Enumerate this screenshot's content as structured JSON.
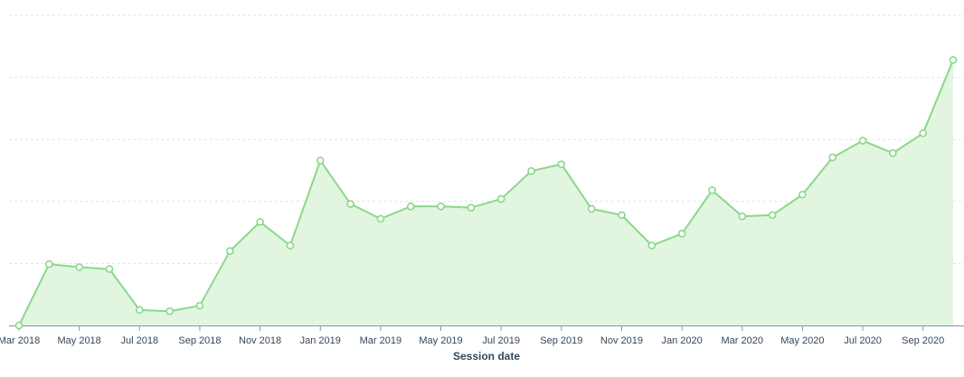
{
  "chart_data": {
    "type": "area",
    "title": "",
    "xlabel": "Session date",
    "ylabel": "",
    "x": [
      "Mar 2018",
      "Apr 2018",
      "May 2018",
      "Jun 2018",
      "Jul 2018",
      "Aug 2018",
      "Sep 2018",
      "Oct 2018",
      "Nov 2018",
      "Dec 2018",
      "Jan 2019",
      "Feb 2019",
      "Mar 2019",
      "Apr 2019",
      "May 2019",
      "Jun 2019",
      "Jul 2019",
      "Aug 2019",
      "Sep 2019",
      "Oct 2019",
      "Nov 2019",
      "Dec 2019",
      "Jan 2020",
      "Feb 2020",
      "Mar 2020",
      "Apr 2020",
      "May 2020",
      "Jun 2020",
      "Jul 2020",
      "Aug 2020",
      "Sep 2020",
      "Oct 2020"
    ],
    "x_tick_labels": [
      "Mar 2018",
      "May 2018",
      "Jul 2018",
      "Sep 2018",
      "Nov 2018",
      "Jan 2019",
      "Mar 2019",
      "May 2019",
      "Jul 2019",
      "Sep 2019",
      "Nov 2019",
      "Jan 2020",
      "Mar 2020",
      "May 2020",
      "Jul 2020",
      "Sep 2020"
    ],
    "series": [
      {
        "values": [
          0,
          99,
          94,
          91,
          25,
          23,
          32,
          120,
          167,
          129,
          266,
          196,
          172,
          192,
          192,
          190,
          204,
          249,
          260,
          188,
          178,
          129,
          148,
          218,
          176,
          178,
          211,
          271,
          298,
          278,
          310,
          428
        ]
      }
    ],
    "ylim": [
      0,
      500
    ],
    "y_gridlines": [
      100,
      200,
      300,
      400,
      500
    ],
    "y_tick_labels_visible": false,
    "grid": true,
    "colors": {
      "line": "#8ad88a",
      "fill": "#e2f5e0",
      "marker_fill": "#ffffff"
    }
  }
}
